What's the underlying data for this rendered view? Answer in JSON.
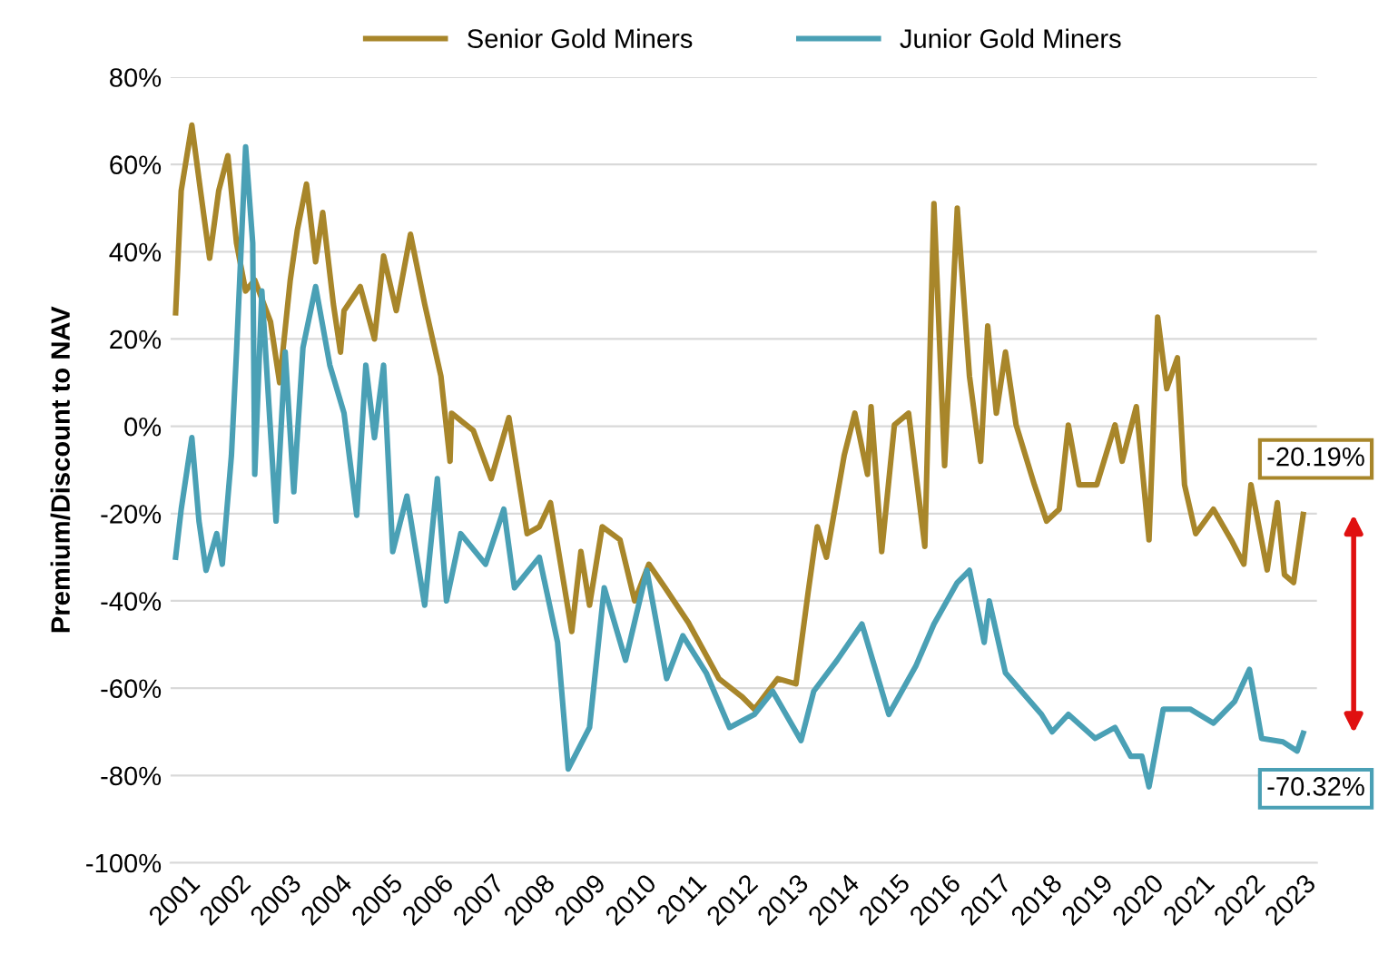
{
  "chart_data": {
    "type": "line",
    "ylabel": "Premium/Discount to NAV",
    "xlim": [
      2000.9,
      2023.5
    ],
    "xticks": [
      2001,
      2002,
      2003,
      2004,
      2005,
      2006,
      2007,
      2008,
      2009,
      2010,
      2011,
      2012,
      2013,
      2014,
      2015,
      2016,
      2017,
      2018,
      2019,
      2020,
      2021,
      2022,
      2023
    ],
    "ylim": [
      -100,
      80
    ],
    "yticks": [
      {
        "value": -100,
        "label": "-100%"
      },
      {
        "value": -80,
        "label": "-80%"
      },
      {
        "value": -60,
        "label": "-60%"
      },
      {
        "value": -40,
        "label": "-40%"
      },
      {
        "value": -20,
        "label": "-20%"
      },
      {
        "value": 0,
        "label": "0%"
      },
      {
        "value": 20,
        "label": "20%"
      },
      {
        "value": 40,
        "label": "40%"
      },
      {
        "value": 60,
        "label": "60%"
      },
      {
        "value": 80,
        "label": "80%"
      }
    ],
    "grid": "y",
    "legend": "top",
    "marker": "none",
    "line_style": "solid",
    "series": [
      {
        "name": "Senior Gold Miners",
        "color": "#a8862a",
        "x": [
          2001.0,
          2001.11,
          2001.32,
          2001.49,
          2001.67,
          2001.85,
          2002.03,
          2002.2,
          2002.38,
          2002.56,
          2002.87,
          2003.05,
          2003.26,
          2003.4,
          2003.58,
          2003.76,
          2003.9,
          2004.11,
          2004.25,
          2004.32,
          2004.64,
          2004.92,
          2005.1,
          2005.35,
          2005.63,
          2005.91,
          2006.23,
          2006.41,
          2006.44,
          2006.87,
          2007.22,
          2007.57,
          2007.93,
          2008.17,
          2008.39,
          2008.81,
          2008.99,
          2009.16,
          2009.41,
          2009.76,
          2010.05,
          2010.33,
          2010.65,
          2011.11,
          2011.71,
          2012.17,
          2012.41,
          2012.87,
          2013.23,
          2013.47,
          2013.65,
          2013.83,
          2014.18,
          2014.39,
          2014.64,
          2014.71,
          2014.92,
          2015.17,
          2015.45,
          2015.77,
          2015.95,
          2016.16,
          2016.41,
          2016.65,
          2016.87,
          2017.01,
          2017.18,
          2017.36,
          2017.57,
          2017.93,
          2018.17,
          2018.42,
          2018.6,
          2018.81,
          2019.16,
          2019.52,
          2019.66,
          2019.94,
          2020.19,
          2020.36,
          2020.54,
          2020.75,
          2020.89,
          2021.11,
          2021.46,
          2021.81,
          2022.06,
          2022.2,
          2022.52,
          2022.72,
          2022.86,
          2023.04,
          2023.23
        ],
        "values": [
          26,
          54,
          69,
          54,
          38.5,
          54,
          62,
          42,
          31,
          33.5,
          24,
          10,
          33.5,
          45,
          55.5,
          37.7,
          49,
          28,
          17,
          26.5,
          32,
          20,
          39,
          26.5,
          44,
          28,
          11.5,
          -8,
          3,
          -1,
          -12,
          2,
          -24.6,
          -23,
          -17.5,
          -47,
          -28.7,
          -41,
          -23,
          -26,
          -40,
          -31.6,
          -37,
          -45,
          -57.8,
          -62,
          -64.8,
          -57.8,
          -59,
          -38,
          -23,
          -30,
          -6.7,
          3,
          -11,
          4.5,
          -28.7,
          0.3,
          3,
          -27.5,
          51,
          -9,
          50,
          11.5,
          -8,
          23,
          3,
          17,
          0.3,
          -13.4,
          -21.7,
          -19,
          0.3,
          -13.4,
          -13.4,
          0.3,
          -8,
          4.5,
          -26,
          25,
          8.6,
          15.7,
          -13.4,
          -24.6,
          -19,
          -26,
          -31.6,
          -13.4,
          -32.9,
          -17.5,
          -34,
          -35.8,
          -20.19
        ]
      },
      {
        "name": "Junior Gold Miners",
        "color": "#4aa0b5",
        "x": [
          2001.0,
          2001.11,
          2001.32,
          2001.46,
          2001.6,
          2001.81,
          2001.92,
          2002.1,
          2002.2,
          2002.38,
          2002.52,
          2002.56,
          2002.7,
          2002.98,
          2003.16,
          2003.33,
          2003.51,
          2003.76,
          2004.04,
          2004.32,
          2004.57,
          2004.75,
          2004.92,
          2005.1,
          2005.28,
          2005.56,
          2005.91,
          2006.16,
          2006.34,
          2006.62,
          2007.11,
          2007.47,
          2007.68,
          2008.17,
          2008.53,
          2008.74,
          2009.16,
          2009.45,
          2009.87,
          2010.29,
          2010.68,
          2011.0,
          2011.46,
          2011.92,
          2012.41,
          2012.77,
          2013.33,
          2013.58,
          2014.04,
          2014.53,
          2015.06,
          2015.59,
          2015.95,
          2016.41,
          2016.65,
          2016.94,
          2017.04,
          2017.36,
          2018.07,
          2018.28,
          2018.6,
          2019.13,
          2019.52,
          2019.83,
          2020.05,
          2020.19,
          2020.47,
          2021.0,
          2021.46,
          2021.88,
          2022.17,
          2022.41,
          2022.83,
          2023.11,
          2023.23
        ],
        "values": [
          -30,
          -19,
          -2.6,
          -21.7,
          -33,
          -24.6,
          -31.6,
          -6.7,
          17,
          64,
          42,
          -11,
          31,
          -21.7,
          17,
          -15,
          18,
          32,
          14,
          3,
          -20.4,
          14,
          -2.6,
          14,
          -28.7,
          -16,
          -41,
          -12,
          -40,
          -24.6,
          -31.6,
          -19,
          -37,
          -30,
          -49.5,
          -78.5,
          -69,
          -37,
          -53.6,
          -33,
          -57.8,
          -48,
          -56.5,
          -69,
          -66,
          -60.7,
          -72,
          -60.7,
          -53.6,
          -45.3,
          -66,
          -55,
          -45.3,
          -35.8,
          -33,
          -49.5,
          -40,
          -56.5,
          -66,
          -70,
          -66,
          -71.5,
          -69,
          -75.6,
          -75.6,
          -82.6,
          -64.8,
          -64.8,
          -68,
          -63,
          -55.7,
          -71.5,
          -72.3,
          -74.4,
          -70.32
        ]
      }
    ],
    "annotations": [
      {
        "text": "-20.19%",
        "x": 2023.23,
        "y": -20.19
      },
      {
        "text": "-70.32%",
        "x": 2023.23,
        "y": -70.32
      }
    ]
  }
}
